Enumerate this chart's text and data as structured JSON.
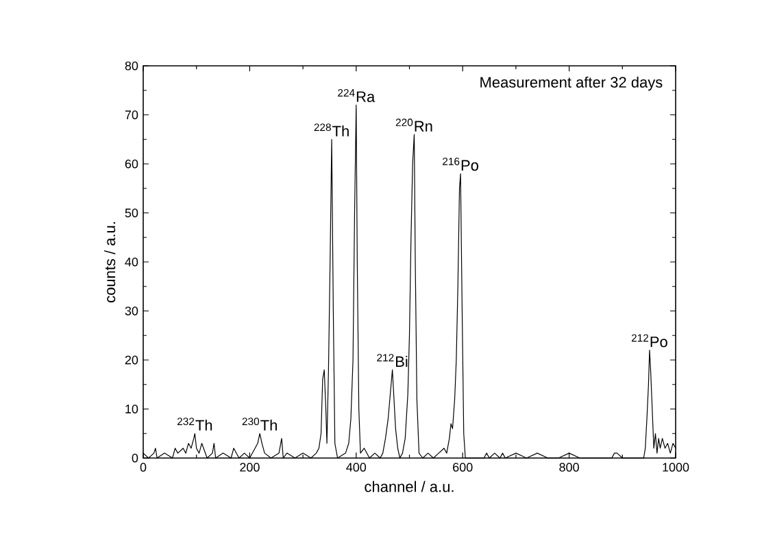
{
  "chart_data": {
    "type": "line",
    "xlabel": "channel / a.u.",
    "ylabel": "counts / a.u.",
    "xlim": [
      0,
      1000
    ],
    "ylim": [
      0,
      80
    ],
    "xticks": [
      0,
      200,
      400,
      600,
      800,
      1000
    ],
    "yticks": [
      0,
      10,
      20,
      30,
      40,
      50,
      60,
      70,
      80
    ],
    "marker": "none",
    "line_style": "solid",
    "series": [
      {
        "color": "#000000",
        "x": [
          0,
          10,
          20,
          23,
          26,
          40,
          55,
          60,
          65,
          75,
          80,
          85,
          90,
          95,
          97,
          100,
          105,
          110,
          120,
          130,
          133,
          136,
          150,
          165,
          170,
          180,
          190,
          200,
          210,
          215,
          219,
          223,
          228,
          240,
          255,
          260,
          263,
          270,
          285,
          300,
          315,
          325,
          330,
          334,
          337,
          340,
          343,
          345,
          348,
          351,
          354,
          357,
          360,
          365,
          380,
          386,
          390,
          394,
          397,
          400,
          402,
          405,
          408,
          415,
          425,
          435,
          445,
          450,
          455,
          460,
          464,
          468,
          471,
          474,
          478,
          482,
          487,
          492,
          497,
          500,
          503,
          506,
          509,
          511,
          514,
          518,
          525,
          535,
          545,
          555,
          565,
          570,
          575,
          578,
          581,
          585,
          588,
          591,
          594,
          596,
          599,
          602,
          605,
          620,
          640,
          645,
          650,
          660,
          670,
          675,
          680,
          700,
          720,
          740,
          760,
          780,
          800,
          820,
          840,
          860,
          880,
          885,
          890,
          900,
          920,
          930,
          940,
          943,
          946,
          949,
          951,
          953,
          956,
          959,
          962,
          965,
          968,
          971,
          975,
          980,
          985,
          990,
          995,
          1000
        ],
        "values": [
          1,
          0,
          1,
          2,
          0,
          1,
          0,
          2,
          1,
          2,
          1,
          3,
          2,
          4,
          5,
          2,
          1,
          3,
          0,
          1,
          3,
          0,
          1,
          0,
          2,
          0,
          1,
          0,
          2,
          3,
          5,
          3,
          1,
          0,
          1,
          4,
          0,
          1,
          0,
          1,
          0,
          1,
          2,
          5,
          16,
          18,
          10,
          3,
          18,
          40,
          65,
          30,
          3,
          0,
          1,
          3,
          8,
          20,
          50,
          72,
          40,
          10,
          1,
          2,
          0,
          1,
          0,
          1,
          4,
          8,
          13,
          18,
          12,
          6,
          2,
          0,
          1,
          4,
          13,
          25,
          45,
          60,
          66,
          40,
          12,
          1,
          0,
          1,
          0,
          1,
          2,
          1,
          4,
          7,
          6,
          12,
          20,
          35,
          55,
          58,
          30,
          5,
          0,
          0,
          0,
          1,
          0,
          1,
          0,
          1,
          0,
          1,
          0,
          1,
          0,
          0,
          1,
          0,
          0,
          0,
          0,
          1,
          1,
          0,
          0,
          0,
          0,
          2,
          8,
          15,
          22,
          18,
          10,
          2,
          5,
          1,
          4,
          2,
          4,
          2,
          3,
          1,
          3,
          2
        ]
      }
    ],
    "annotations": [
      "Measurement after 32 days",
      {
        "text": "$^{232}$Th",
        "x": 97,
        "y": 5
      },
      {
        "text": "$^{230}$Th",
        "x": 219,
        "y": 5
      },
      {
        "text": "$^{228}$Th",
        "x": 354,
        "y": 65
      },
      {
        "text": "$^{224}$Ra",
        "x": 400,
        "y": 72
      },
      {
        "text": "$^{212}$Bi",
        "x": 468,
        "y": 18
      },
      {
        "text": "$^{220}$Rn",
        "x": 509,
        "y": 66
      },
      {
        "text": "$^{216}$Po",
        "x": 596,
        "y": 58
      },
      {
        "text": "$^{212}$Po",
        "x": 951,
        "y": 22
      }
    ]
  }
}
